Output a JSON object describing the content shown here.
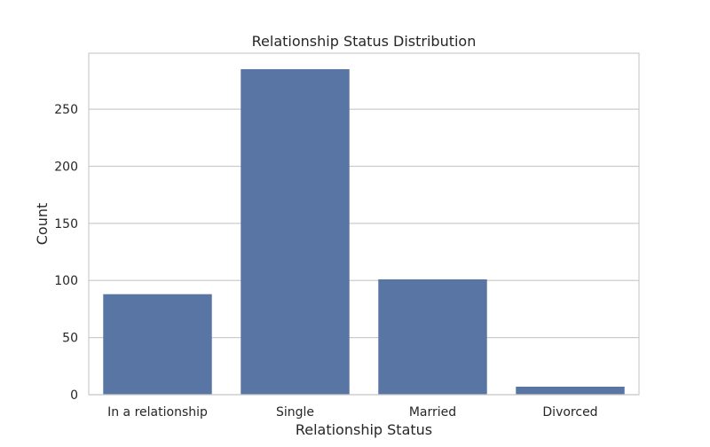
{
  "chart_data": {
    "type": "bar",
    "title": "Relationship Status Distribution",
    "xlabel": "Relationship Status",
    "ylabel": "Count",
    "categories": [
      "In a relationship",
      "Single",
      "Married",
      "Divorced"
    ],
    "values": [
      88,
      285,
      101,
      7
    ],
    "ylim": [
      0,
      299
    ],
    "yticks": [
      0,
      50,
      100,
      150,
      200,
      250
    ],
    "grid": true,
    "bar_color": "#5875a4",
    "grid_color": "#cccccc",
    "frame_color": "#cccccc"
  }
}
